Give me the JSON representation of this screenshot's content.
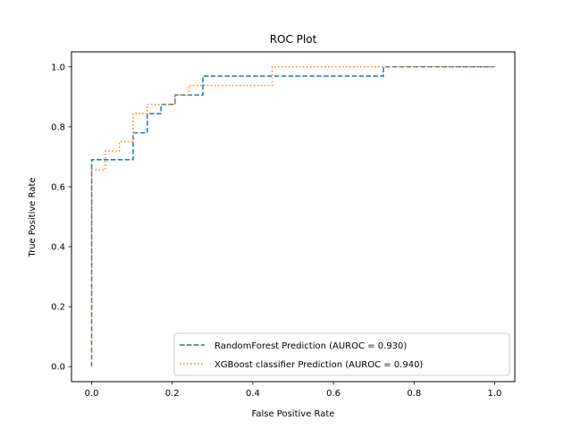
{
  "chart_data": {
    "type": "line",
    "title": "ROC Plot",
    "xlabel": "False Positive Rate",
    "ylabel": "True Positive Rate",
    "xlim": [
      -0.05,
      1.05
    ],
    "ylim": [
      -0.05,
      1.05
    ],
    "xticks": [
      0.0,
      0.2,
      0.4,
      0.6,
      0.8,
      1.0
    ],
    "xtick_labels": [
      "0.0",
      "0.2",
      "0.4",
      "0.6",
      "0.8",
      "1.0"
    ],
    "yticks": [
      0.0,
      0.2,
      0.4,
      0.6,
      0.8,
      1.0
    ],
    "ytick_labels": [
      "0.0",
      "0.2",
      "0.4",
      "0.6",
      "0.8",
      "1.0"
    ],
    "grid": false,
    "legend_position": "lower-right",
    "series": [
      {
        "name": "RandomForest Prediction (AUROC = 0.930)",
        "color": "#1f77b4",
        "style": "dashed",
        "points": [
          [
            0.0,
            0.0
          ],
          [
            0.0,
            0.69
          ],
          [
            0.103,
            0.69
          ],
          [
            0.103,
            0.78
          ],
          [
            0.138,
            0.78
          ],
          [
            0.138,
            0.844
          ],
          [
            0.172,
            0.844
          ],
          [
            0.172,
            0.875
          ],
          [
            0.207,
            0.875
          ],
          [
            0.207,
            0.906
          ],
          [
            0.276,
            0.906
          ],
          [
            0.276,
            0.969
          ],
          [
            0.724,
            0.969
          ],
          [
            0.724,
            1.0
          ],
          [
            1.0,
            1.0
          ]
        ]
      },
      {
        "name": "XGBoost classifier Prediction (AUROC = 0.940)",
        "color": "#ff7f0e",
        "style": "dotted",
        "points": [
          [
            0.0,
            0.0
          ],
          [
            0.0,
            0.656
          ],
          [
            0.034,
            0.656
          ],
          [
            0.034,
            0.719
          ],
          [
            0.069,
            0.719
          ],
          [
            0.069,
            0.75
          ],
          [
            0.103,
            0.75
          ],
          [
            0.103,
            0.844
          ],
          [
            0.138,
            0.844
          ],
          [
            0.138,
            0.875
          ],
          [
            0.207,
            0.875
          ],
          [
            0.207,
            0.906
          ],
          [
            0.241,
            0.906
          ],
          [
            0.241,
            0.938
          ],
          [
            0.448,
            0.938
          ],
          [
            0.448,
            1.0
          ],
          [
            1.0,
            1.0
          ]
        ]
      }
    ]
  }
}
